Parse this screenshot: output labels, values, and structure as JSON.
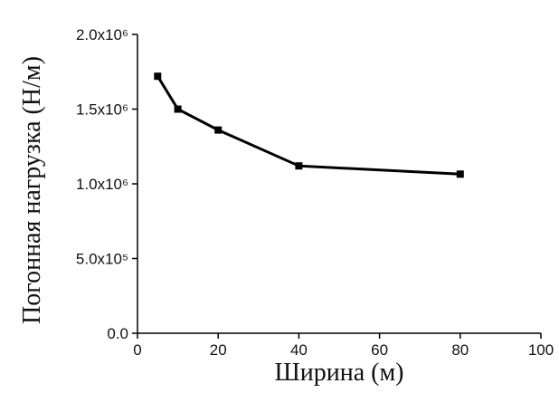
{
  "chart_data": {
    "type": "line",
    "x_label": "Ширина (м)",
    "y_label": "Погонная нагрузка (Н/м)",
    "x": [
      5,
      10,
      20,
      40,
      80
    ],
    "values": [
      1720000,
      1500000,
      1360000,
      1120000,
      1065000
    ],
    "color": "#000000",
    "xlim": [
      0,
      100
    ],
    "xticks": [
      0,
      20,
      40,
      60,
      80,
      100
    ],
    "ylim": [
      0,
      2000000
    ],
    "yticks": [
      {
        "value": 0,
        "label": "0.0"
      },
      {
        "value": 500000,
        "label": "5.0x10⁵"
      },
      {
        "value": 1000000,
        "label": "1.0x10⁶"
      },
      {
        "value": 1500000,
        "label": "1.5x10⁶"
      },
      {
        "value": 2000000,
        "label": "2.0x10⁶"
      }
    ]
  }
}
